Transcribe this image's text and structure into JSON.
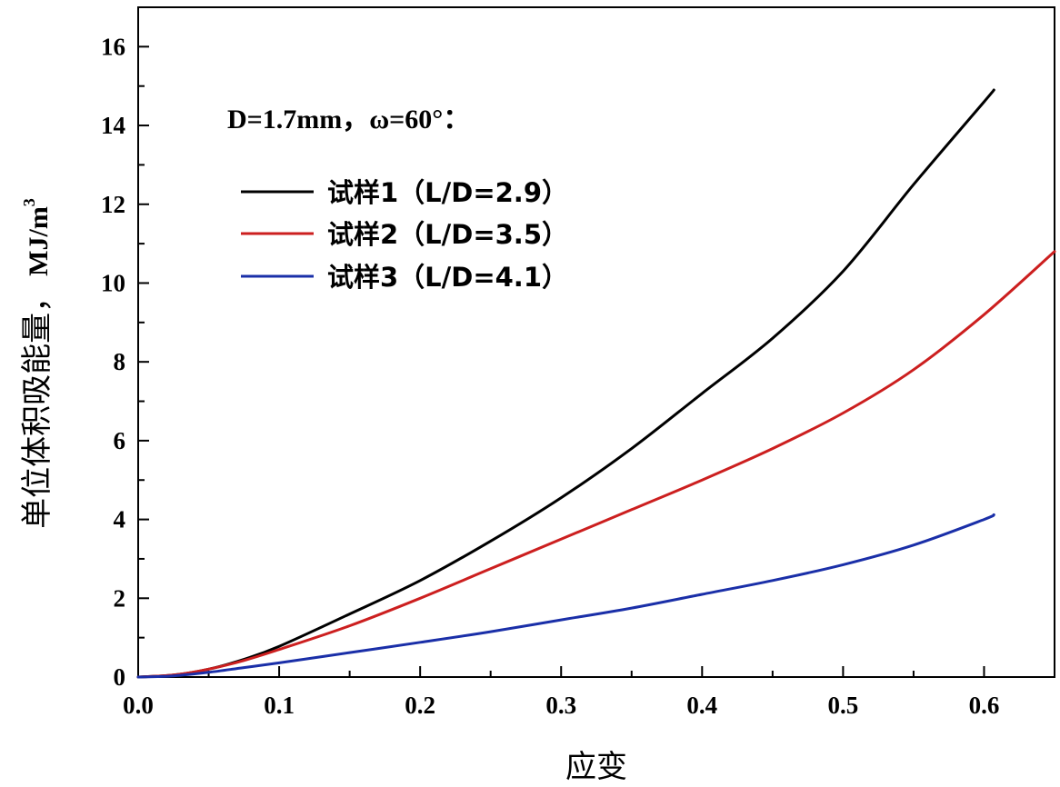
{
  "chart_data": {
    "type": "line",
    "title": "",
    "xlabel": "应变",
    "ylabel": "单位体积吸能量，",
    "ylabel_unit": "MJ/m",
    "ylabel_unit_sup": "3",
    "xlim": [
      0.0,
      0.65
    ],
    "ylim": [
      0,
      17
    ],
    "xticks": [
      "0.0",
      "0.1",
      "0.2",
      "0.3",
      "0.4",
      "0.5",
      "0.6"
    ],
    "yticks": [
      "0",
      "2",
      "4",
      "6",
      "8",
      "10",
      "12",
      "14",
      "16"
    ],
    "xtick_values": [
      0.0,
      0.1,
      0.2,
      0.3,
      0.4,
      0.5,
      0.6
    ],
    "ytick_values": [
      0,
      2,
      4,
      6,
      8,
      10,
      12,
      14,
      16
    ],
    "grid": false,
    "annotation": "D=1.7mm，ω=60°：",
    "legend_position": "top-left",
    "series": [
      {
        "name": "试样1（L/D=2.9）",
        "color": "#000000",
        "x": [
          0.0,
          0.025,
          0.05,
          0.075,
          0.1,
          0.15,
          0.2,
          0.25,
          0.3,
          0.35,
          0.4,
          0.45,
          0.5,
          0.55,
          0.6,
          0.607
        ],
        "y": [
          0.0,
          0.05,
          0.2,
          0.45,
          0.78,
          1.6,
          2.45,
          3.45,
          4.55,
          5.8,
          7.2,
          8.6,
          10.3,
          12.5,
          14.6,
          14.9
        ]
      },
      {
        "name": "试样2（L/D=3.5）",
        "color": "#cc1f1f",
        "x": [
          0.0,
          0.025,
          0.05,
          0.075,
          0.1,
          0.15,
          0.2,
          0.25,
          0.3,
          0.35,
          0.4,
          0.45,
          0.5,
          0.55,
          0.6,
          0.65
        ],
        "y": [
          0.0,
          0.05,
          0.2,
          0.42,
          0.7,
          1.3,
          2.0,
          2.75,
          3.5,
          4.25,
          5.0,
          5.8,
          6.7,
          7.8,
          9.2,
          10.8
        ]
      },
      {
        "name": "试样3（L/D=4.1）",
        "color": "#1a2fa8",
        "x": [
          0.0,
          0.025,
          0.05,
          0.075,
          0.1,
          0.15,
          0.2,
          0.25,
          0.3,
          0.35,
          0.4,
          0.45,
          0.5,
          0.55,
          0.6,
          0.607
        ],
        "y": [
          0.0,
          0.03,
          0.12,
          0.24,
          0.36,
          0.62,
          0.88,
          1.15,
          1.45,
          1.75,
          2.1,
          2.45,
          2.85,
          3.35,
          4.0,
          4.12
        ]
      }
    ]
  }
}
